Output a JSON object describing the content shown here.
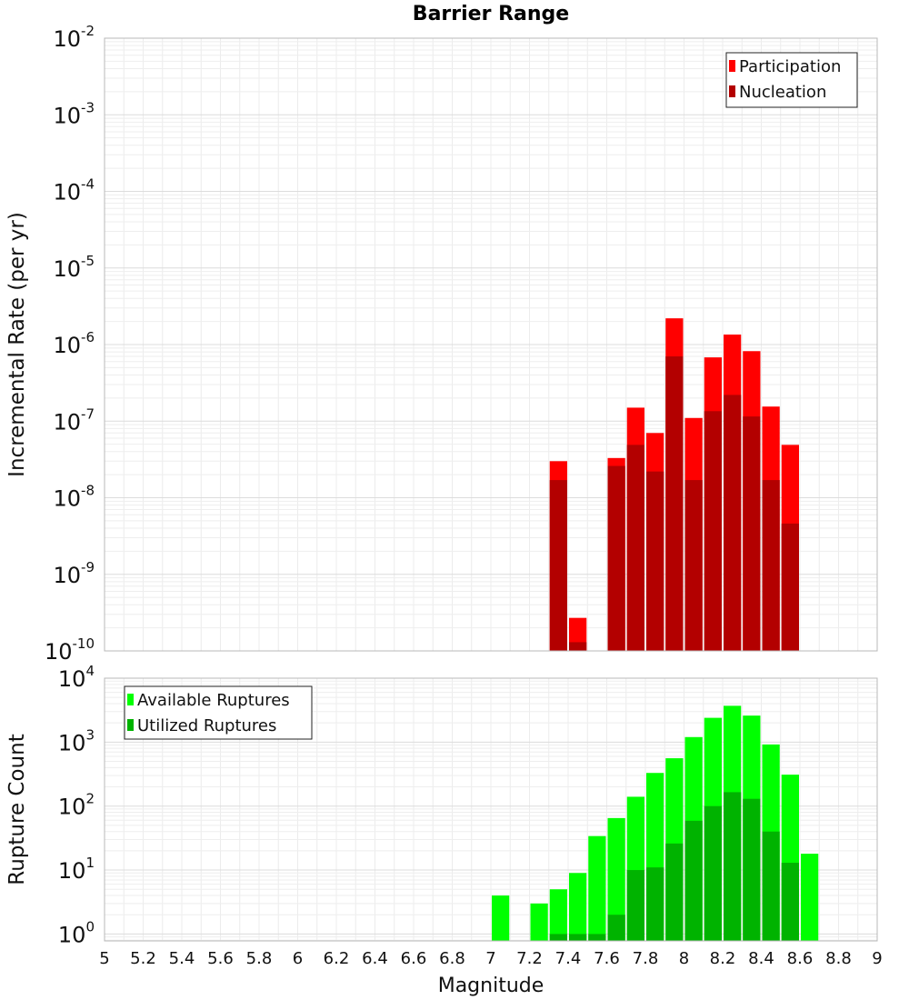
{
  "chart_data": [
    {
      "type": "bar",
      "title": "Barrier Range",
      "xlabel": "",
      "ylabel": "Incremental Rate (per yr)",
      "yscale": "log",
      "xlim": [
        5,
        9
      ],
      "ylim": [
        1e-10,
        0.01
      ],
      "grid": true,
      "legend_position": "top-right",
      "x": [
        7.35,
        7.45,
        7.65,
        7.75,
        7.85,
        7.95,
        8.05,
        8.15,
        8.25,
        8.35,
        8.45,
        8.55
      ],
      "x_ticks": [
        5,
        5.2,
        5.4,
        5.6,
        5.8,
        6,
        6.2,
        6.4,
        6.6,
        6.8,
        7,
        7.2,
        7.4,
        7.6,
        7.8,
        8,
        8.2,
        8.4,
        8.6,
        8.8,
        9
      ],
      "y_ticks": [
        {
          "base": "10",
          "exp": "-2",
          "value": 0.01
        },
        {
          "base": "10",
          "exp": "-3",
          "value": 0.001
        },
        {
          "base": "10",
          "exp": "-4",
          "value": 0.0001
        },
        {
          "base": "10",
          "exp": "-5",
          "value": 1e-05
        },
        {
          "base": "10",
          "exp": "-6",
          "value": 1e-06
        },
        {
          "base": "10",
          "exp": "-7",
          "value": 1e-07
        },
        {
          "base": "10",
          "exp": "-8",
          "value": 1e-08
        },
        {
          "base": "10",
          "exp": "-9",
          "value": 1e-09
        },
        {
          "base": "10",
          "exp": "-10",
          "value": 1e-10
        }
      ],
      "series": [
        {
          "name": "Participation",
          "color": "#ff0000",
          "values": [
            3e-08,
            2.7e-10,
            3.3e-08,
            1.5e-07,
            7e-08,
            2.2e-06,
            1.1e-07,
            6.8e-07,
            1.35e-06,
            8.2e-07,
            1.55e-07,
            4.9e-08
          ]
        },
        {
          "name": "Nucleation",
          "color": "#b30000",
          "values": [
            1.7e-08,
            1.3e-10,
            2.6e-08,
            4.9e-08,
            2.2e-08,
            7e-07,
            1.7e-08,
            1.35e-07,
            2.2e-07,
            1.15e-07,
            1.7e-08,
            4.6e-09
          ]
        }
      ]
    },
    {
      "type": "bar",
      "title": "",
      "xlabel": "Magnitude",
      "ylabel": "Rupture Count",
      "yscale": "log",
      "xlim": [
        5,
        9
      ],
      "ylim": [
        0.78,
        10000.0
      ],
      "grid": true,
      "legend_position": "top-left",
      "x": [
        7.05,
        7.25,
        7.35,
        7.45,
        7.55,
        7.65,
        7.75,
        7.85,
        7.95,
        8.05,
        8.15,
        8.25,
        8.35,
        8.45,
        8.55,
        8.65
      ],
      "x_ticks": [
        5,
        5.2,
        5.4,
        5.6,
        5.8,
        6,
        6.2,
        6.4,
        6.6,
        6.8,
        7,
        7.2,
        7.4,
        7.6,
        7.8,
        8,
        8.2,
        8.4,
        8.6,
        8.8,
        9
      ],
      "y_ticks": [
        {
          "base": "10",
          "exp": "4",
          "value": 10000.0
        },
        {
          "base": "10",
          "exp": "3",
          "value": 1000.0
        },
        {
          "base": "10",
          "exp": "2",
          "value": 100.0
        },
        {
          "base": "10",
          "exp": "1",
          "value": 10.0
        },
        {
          "base": "10",
          "exp": "0",
          "value": 1.0
        }
      ],
      "series": [
        {
          "name": "Available Ruptures",
          "color": "#00ff00",
          "values": [
            4,
            3,
            5,
            9,
            34,
            65,
            140,
            330,
            560,
            1200,
            2400,
            3700,
            2600,
            920,
            310,
            18
          ]
        },
        {
          "name": "Utilized Ruptures",
          "color": "#00b300",
          "values": [
            0,
            0,
            1,
            1,
            1,
            2,
            10,
            11,
            26,
            59,
            100,
            165,
            130,
            40,
            13,
            0
          ]
        }
      ]
    }
  ]
}
